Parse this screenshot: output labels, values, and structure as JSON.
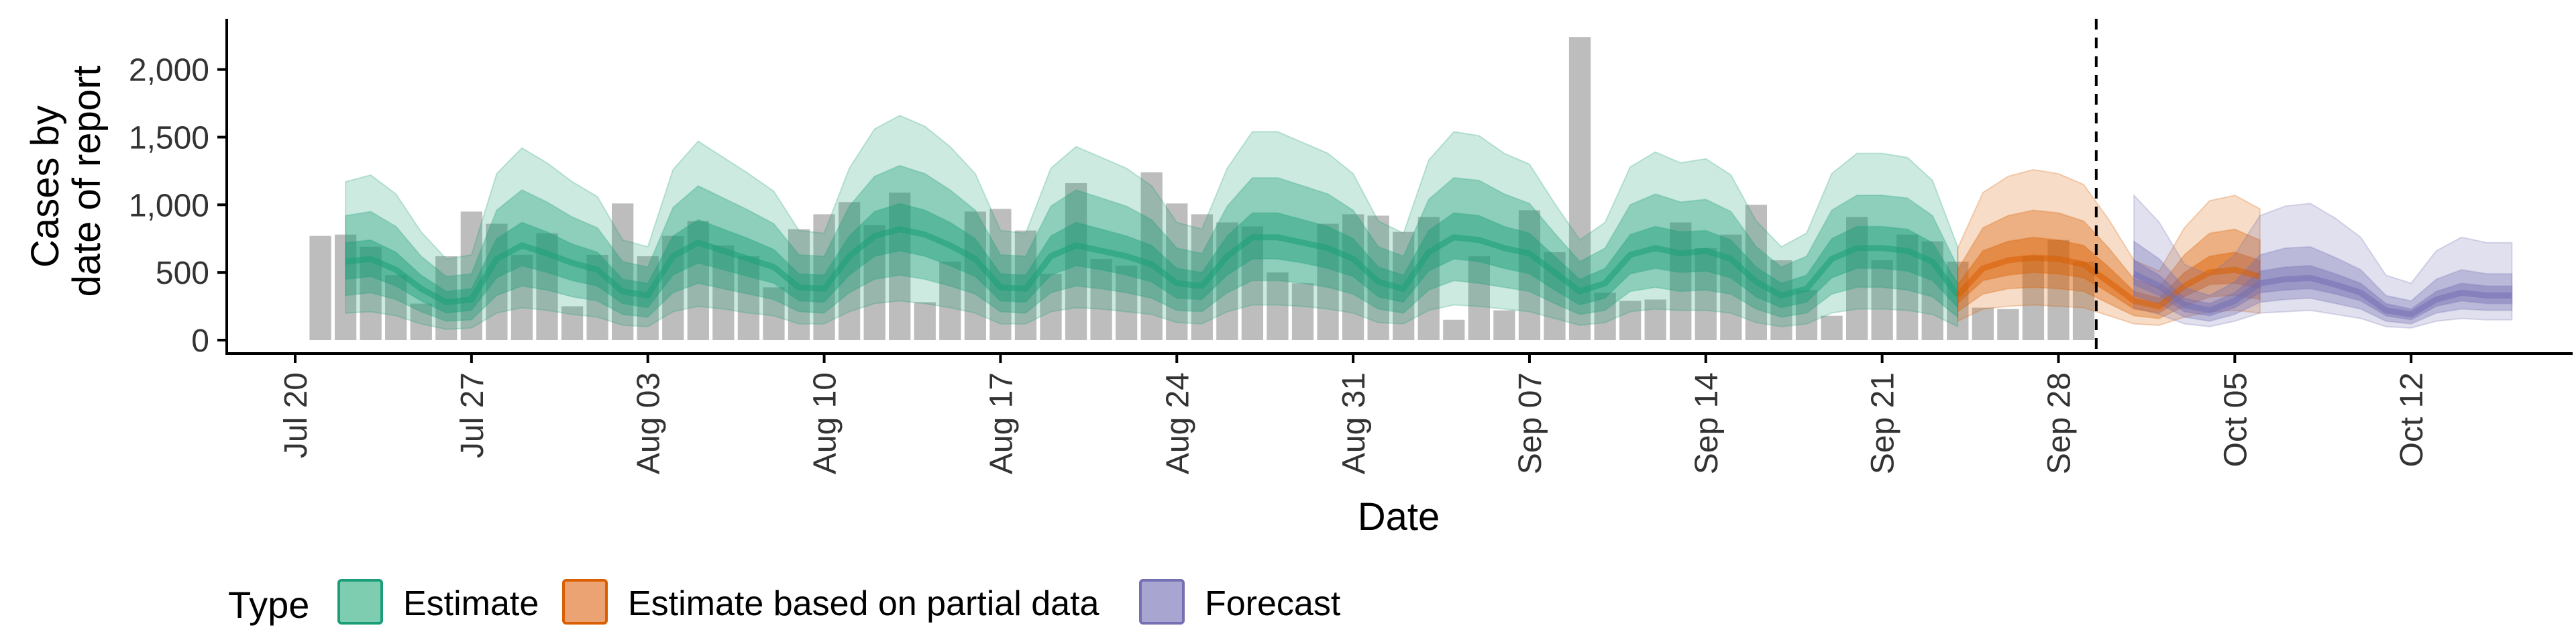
{
  "chart_data": {
    "type": "bar",
    "xlabel": "Date",
    "ylabel_lines": [
      "Cases by",
      "date of report"
    ],
    "ylim": [
      0,
      2350
    ],
    "y_ticks": [
      0,
      500,
      1000,
      1500,
      2000
    ],
    "y_tick_labels": [
      "0",
      "500",
      "1,000",
      "1,500",
      "2,000"
    ],
    "x_ticks": [
      {
        "day": 0,
        "label": "Jul 20"
      },
      {
        "day": 7,
        "label": "Jul 27"
      },
      {
        "day": 14,
        "label": "Aug 03"
      },
      {
        "day": 21,
        "label": "Aug 10"
      },
      {
        "day": 28,
        "label": "Aug 17"
      },
      {
        "day": 35,
        "label": "Aug 24"
      },
      {
        "day": 42,
        "label": "Aug 31"
      },
      {
        "day": 49,
        "label": "Sep 07"
      },
      {
        "day": 56,
        "label": "Sep 14"
      },
      {
        "day": 63,
        "label": "Sep 21"
      },
      {
        "day": 70,
        "label": "Sep 28"
      },
      {
        "day": 77,
        "label": "Oct 05"
      },
      {
        "day": 84,
        "label": "Oct 12"
      }
    ],
    "forecast_start_day": 71.5,
    "bar_color": "#bdbdbd",
    "reported_cases": [
      {
        "date": "Jul 21",
        "value": 770
      },
      {
        "date": "Jul 22",
        "value": 780
      },
      {
        "date": "Jul 23",
        "value": 690
      },
      {
        "date": "Jul 24",
        "value": 480
      },
      {
        "date": "Jul 25",
        "value": 270
      },
      {
        "date": "Jul 26",
        "value": 620
      },
      {
        "date": "Jul 27",
        "value": 950
      },
      {
        "date": "Jul 28",
        "value": 860
      },
      {
        "date": "Jul 29",
        "value": 630
      },
      {
        "date": "Jul 30",
        "value": 790
      },
      {
        "date": "Jul 31",
        "value": 250
      },
      {
        "date": "Aug 01",
        "value": 630
      },
      {
        "date": "Aug 02",
        "value": 1010
      },
      {
        "date": "Aug 03",
        "value": 620
      },
      {
        "date": "Aug 04",
        "value": 770
      },
      {
        "date": "Aug 05",
        "value": 880
      },
      {
        "date": "Aug 06",
        "value": 700
      },
      {
        "date": "Aug 07",
        "value": 620
      },
      {
        "date": "Aug 08",
        "value": 390
      },
      {
        "date": "Aug 09",
        "value": 820
      },
      {
        "date": "Aug 10",
        "value": 930
      },
      {
        "date": "Aug 11",
        "value": 1020
      },
      {
        "date": "Aug 12",
        "value": 850
      },
      {
        "date": "Aug 13",
        "value": 1090
      },
      {
        "date": "Aug 14",
        "value": 280
      },
      {
        "date": "Aug 15",
        "value": 580
      },
      {
        "date": "Aug 16",
        "value": 950
      },
      {
        "date": "Aug 17",
        "value": 970
      },
      {
        "date": "Aug 18",
        "value": 810
      },
      {
        "date": "Aug 19",
        "value": 490
      },
      {
        "date": "Aug 20",
        "value": 1160
      },
      {
        "date": "Aug 21",
        "value": 600
      },
      {
        "date": "Aug 22",
        "value": 550
      },
      {
        "date": "Aug 23",
        "value": 1240
      },
      {
        "date": "Aug 24",
        "value": 1010
      },
      {
        "date": "Aug 25",
        "value": 930
      },
      {
        "date": "Aug 26",
        "value": 870
      },
      {
        "date": "Aug 27",
        "value": 840
      },
      {
        "date": "Aug 28",
        "value": 500
      },
      {
        "date": "Aug 29",
        "value": 420
      },
      {
        "date": "Aug 30",
        "value": 860
      },
      {
        "date": "Aug 31",
        "value": 930
      },
      {
        "date": "Sep 01",
        "value": 920
      },
      {
        "date": "Sep 02",
        "value": 800
      },
      {
        "date": "Sep 03",
        "value": 910
      },
      {
        "date": "Sep 04",
        "value": 150
      },
      {
        "date": "Sep 05",
        "value": 620
      },
      {
        "date": "Sep 06",
        "value": 220
      },
      {
        "date": "Sep 07",
        "value": 960
      },
      {
        "date": "Sep 08",
        "value": 650
      },
      {
        "date": "Sep 09",
        "value": 2240
      },
      {
        "date": "Sep 10",
        "value": 350
      },
      {
        "date": "Sep 11",
        "value": 290
      },
      {
        "date": "Sep 12",
        "value": 300
      },
      {
        "date": "Sep 13",
        "value": 870
      },
      {
        "date": "Sep 14",
        "value": 680
      },
      {
        "date": "Sep 15",
        "value": 780
      },
      {
        "date": "Sep 16",
        "value": 1000
      },
      {
        "date": "Sep 17",
        "value": 590
      },
      {
        "date": "Sep 18",
        "value": 370
      },
      {
        "date": "Sep 19",
        "value": 180
      },
      {
        "date": "Sep 20",
        "value": 910
      },
      {
        "date": "Sep 21",
        "value": 590
      },
      {
        "date": "Sep 22",
        "value": 780
      },
      {
        "date": "Sep 23",
        "value": 730
      },
      {
        "date": "Sep 24",
        "value": 580
      },
      {
        "date": "Sep 25",
        "value": 240
      },
      {
        "date": "Sep 26",
        "value": 230
      },
      {
        "date": "Sep 27",
        "value": 620
      },
      {
        "date": "Sep 28",
        "value": 740
      },
      {
        "date": "Sep 29",
        "value": 580
      }
    ],
    "series": [
      {
        "name": "Estimate",
        "color": "#1b9e77",
        "legend_fill": "#7fcdb0",
        "start_day": 2,
        "median": [
          580,
          600,
          520,
          380,
          280,
          300,
          600,
          700,
          640,
          570,
          520,
          360,
          330,
          620,
          720,
          660,
          600,
          540,
          390,
          380,
          620,
          770,
          820,
          780,
          700,
          600,
          390,
          380,
          620,
          700,
          660,
          620,
          560,
          420,
          400,
          620,
          760,
          760,
          720,
          680,
          600,
          430,
          380,
          650,
          760,
          740,
          680,
          640,
          500,
          360,
          420,
          630,
          680,
          640,
          660,
          600,
          430,
          330,
          380,
          600,
          680,
          680,
          660,
          580,
          330
        ],
        "bands": [
          {
            "lower": [
              450,
              470,
              400,
              290,
              200,
              220,
              460,
              550,
              500,
              440,
              400,
              270,
              240,
              480,
              570,
              520,
              470,
              420,
              290,
              280,
              480,
              620,
              660,
              620,
              550,
              470,
              290,
              280,
              480,
              550,
              520,
              480,
              430,
              310,
              300,
              480,
              600,
              600,
              570,
              530,
              470,
              320,
              280,
              510,
              600,
              580,
              530,
              490,
              370,
              260,
              310,
              490,
              530,
              500,
              510,
              460,
              320,
              240,
              280,
              460,
              530,
              530,
              510,
              440,
              240
            ],
            "upper": [
              720,
              740,
              650,
              480,
              360,
              380,
              750,
              870,
              800,
              710,
              650,
              450,
              420,
              770,
              890,
              820,
              750,
              670,
              490,
              480,
              770,
              950,
              1010,
              960,
              870,
              750,
              490,
              480,
              770,
              870,
              820,
              770,
              700,
              530,
              500,
              770,
              940,
              940,
              890,
              840,
              750,
              540,
              480,
              810,
              940,
              920,
              840,
              790,
              620,
              450,
              530,
              780,
              840,
              800,
              810,
              740,
              540,
              420,
              480,
              750,
              840,
              840,
              820,
              720,
              420
            ]
          },
          {
            "lower": [
              330,
              350,
              300,
              210,
              140,
              150,
              330,
              400,
              370,
              320,
              290,
              190,
              170,
              350,
              420,
              380,
              340,
              300,
              210,
              200,
              350,
              450,
              480,
              450,
              400,
              340,
              210,
              200,
              350,
              400,
              380,
              350,
              310,
              220,
              210,
              350,
              440,
              440,
              420,
              390,
              340,
              230,
              200,
              370,
              440,
              420,
              390,
              360,
              270,
              190,
              220,
              360,
              390,
              360,
              370,
              340,
              230,
              170,
              200,
              340,
              390,
              390,
              370,
              320,
              170
            ],
            "upper": [
              920,
              950,
              840,
              620,
              470,
              490,
              960,
              1110,
              1020,
              910,
              830,
              580,
              540,
              980,
              1140,
              1050,
              960,
              860,
              630,
              620,
              990,
              1210,
              1290,
              1230,
              1110,
              960,
              630,
              620,
              990,
              1110,
              1050,
              990,
              890,
              680,
              640,
              990,
              1200,
              1200,
              1140,
              1080,
              960,
              690,
              620,
              1040,
              1200,
              1180,
              1080,
              1010,
              790,
              580,
              680,
              1000,
              1080,
              1020,
              1040,
              950,
              690,
              540,
              620,
              960,
              1070,
              1070,
              1050,
              920,
              540
            ]
          },
          {
            "lower": [
              200,
              210,
              180,
              120,
              80,
              90,
              200,
              240,
              220,
              190,
              170,
              110,
              100,
              210,
              250,
              230,
              200,
              180,
              120,
              120,
              210,
              270,
              290,
              270,
              240,
              200,
              120,
              120,
              210,
              240,
              230,
              210,
              190,
              130,
              120,
              210,
              260,
              260,
              250,
              230,
              200,
              130,
              120,
              220,
              260,
              250,
              230,
              210,
              160,
              110,
              130,
              210,
              230,
              220,
              220,
              200,
              130,
              100,
              120,
              200,
              230,
              230,
              220,
              190,
              100
            ],
            "upper": [
              1170,
              1220,
              1080,
              800,
              600,
              630,
              1230,
              1420,
              1310,
              1170,
              1060,
              740,
              690,
              1260,
              1470,
              1350,
              1230,
              1100,
              810,
              790,
              1270,
              1560,
              1660,
              1580,
              1430,
              1230,
              810,
              790,
              1270,
              1430,
              1350,
              1270,
              1140,
              870,
              820,
              1270,
              1540,
              1540,
              1460,
              1380,
              1230,
              880,
              790,
              1330,
              1540,
              1510,
              1380,
              1300,
              1010,
              740,
              870,
              1280,
              1390,
              1310,
              1340,
              1220,
              880,
              690,
              790,
              1230,
              1380,
              1380,
              1350,
              1180,
              690
            ]
          }
        ]
      },
      {
        "name": "Estimate based on partial data",
        "color": "#d95f02",
        "legend_fill": "#eba373",
        "start_day": 66,
        "median": [
          330,
          530,
          590,
          610,
          600,
          560,
          430,
          290,
          250,
          400,
          500,
          520,
          470
        ],
        "bands": [
          {
            "lower": [
              270,
              440,
              480,
              500,
              490,
              460,
              350,
              230,
              200,
              320,
              410,
              420,
              380
            ],
            "upper": [
              410,
              660,
              730,
              760,
              740,
              700,
              540,
              360,
              310,
              500,
              620,
              650,
              590
            ]
          },
          {
            "lower": [
              210,
              340,
              380,
              390,
              380,
              360,
              270,
              180,
              160,
              250,
              320,
              330,
              300
            ],
            "upper": [
              520,
              830,
              920,
              960,
              940,
              880,
              680,
              450,
              390,
              630,
              790,
              820,
              740
            ]
          },
          {
            "lower": [
              140,
              230,
              250,
              260,
              250,
              240,
              180,
              120,
              110,
              170,
              210,
              220,
              200
            ],
            "upper": [
              680,
              1090,
              1210,
              1260,
              1230,
              1150,
              890,
              590,
              510,
              830,
              1030,
              1070,
              970
            ]
          }
        ]
      },
      {
        "name": "Forecast",
        "color": "#7570b3",
        "legend_fill": "#a8a5d0",
        "start_day": 73,
        "median": [
          490,
          400,
          260,
          220,
          290,
          420,
          450,
          460,
          410,
          350,
          220,
          190,
          300,
          350,
          330,
          330
        ],
        "bands": [
          {
            "lower": [
              410,
              330,
              210,
              180,
              240,
              350,
              370,
              380,
              340,
              290,
              180,
              150,
              250,
              290,
              270,
              270
            ],
            "upper": [
              590,
              480,
              310,
              270,
              350,
              510,
              540,
              550,
              490,
              420,
              270,
              230,
              360,
              420,
              400,
              400
            ]
          },
          {
            "lower": [
              330,
              270,
              170,
              140,
              190,
              280,
              300,
              310,
              270,
              230,
              140,
              120,
              200,
              230,
              220,
              220
            ],
            "upper": [
              730,
              600,
              390,
              330,
              430,
              630,
              680,
              690,
              610,
              520,
              330,
              290,
              450,
              520,
              490,
              490
            ]
          },
          {
            "lower": [
              240,
              190,
              120,
              100,
              140,
              200,
              210,
              220,
              190,
              160,
              100,
              90,
              140,
              160,
              150,
              150
            ],
            "upper": [
              1070,
              870,
              560,
              480,
              630,
              920,
              990,
              1010,
              900,
              760,
              480,
              420,
              660,
              760,
              720,
              720
            ]
          }
        ]
      }
    ],
    "legend": {
      "title": "Type",
      "position": "bottom",
      "items": [
        "Estimate",
        "Estimate based on partial data",
        "Forecast"
      ]
    }
  }
}
